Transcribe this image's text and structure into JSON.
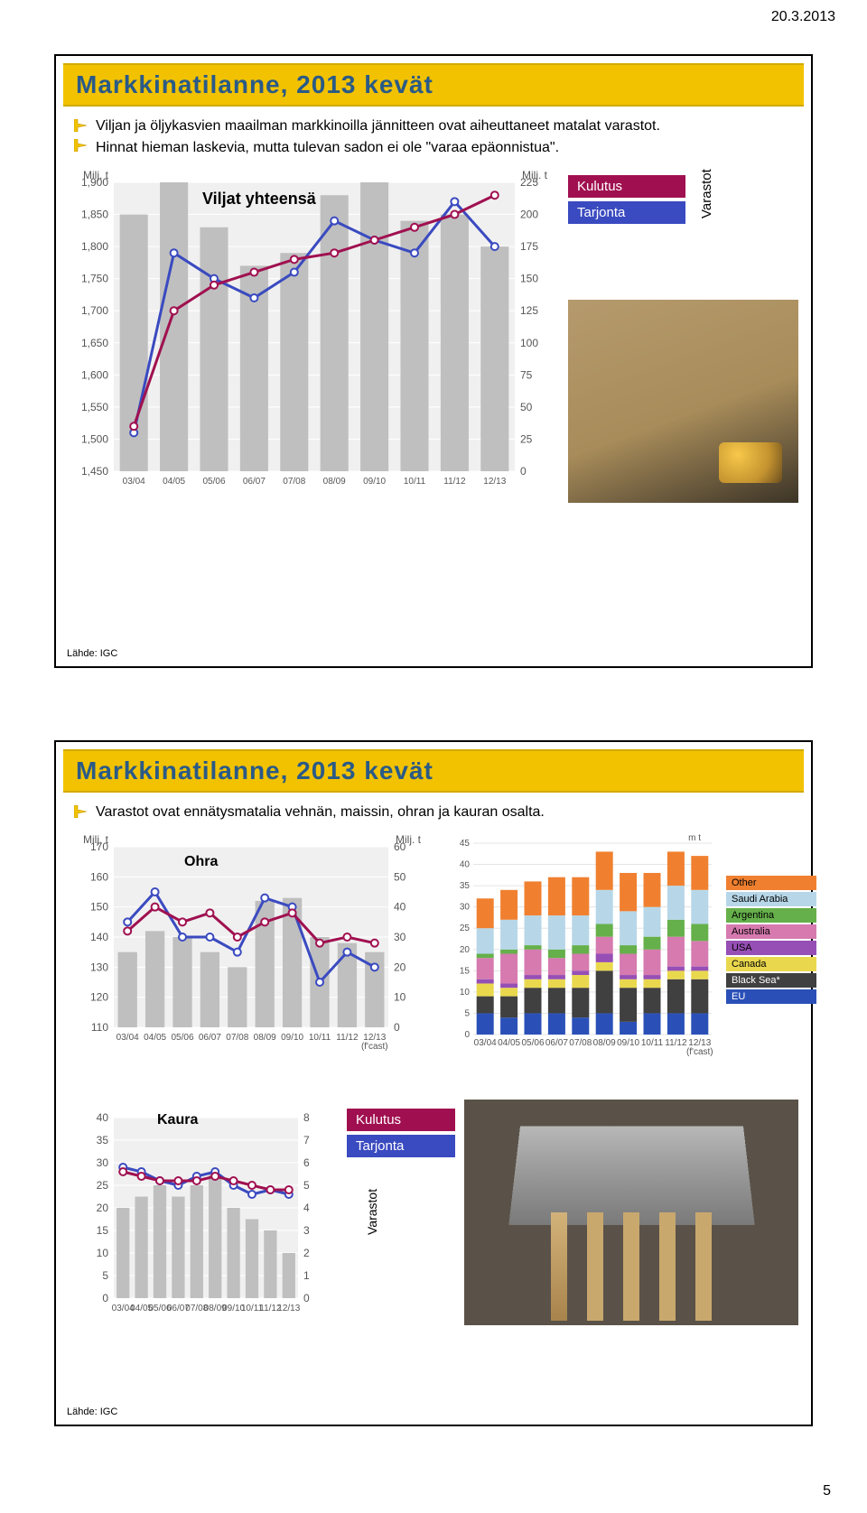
{
  "page": {
    "date": "20.3.2013",
    "number": "5"
  },
  "slide1": {
    "title": "Markkinatilanne, 2013 kevät",
    "bullets": [
      "Viljan ja öljykasvien maailman markkinoilla jännitteen ovat aiheuttaneet matalat varastot.",
      "Hinnat hieman laskevia, mutta tulevan sadon ei ole \"varaa epäonnistua\"."
    ],
    "chart": {
      "type": "bar+line",
      "title": "Viljat yhteensä",
      "left_label": "Milj. t",
      "right_label": "Milj. t",
      "categories": [
        "03/04",
        "04/05",
        "05/06",
        "06/07",
        "07/08",
        "08/09",
        "09/10",
        "10/11",
        "11/12",
        "12/13"
      ],
      "left_ymin": 1450,
      "left_ymax": 1900,
      "left_ystep": 50,
      "right_ymin": 0,
      "right_ymax": 225,
      "right_ystep": 25,
      "stocks_bars": [
        200,
        225,
        190,
        160,
        170,
        215,
        225,
        195,
        200,
        175
      ],
      "supply_line": [
        1510,
        1790,
        1750,
        1720,
        1760,
        1840,
        1810,
        1790,
        1870,
        1800
      ],
      "consumption_line": [
        1520,
        1700,
        1740,
        1760,
        1780,
        1790,
        1810,
        1830,
        1850,
        1880
      ],
      "bar_color": "#bfbfbf",
      "supply_color": "#3a4ac0",
      "consumption_color": "#a01050",
      "grid_color": "#ffffff",
      "bg_color": "#f0f0f0",
      "axis_color": "#555555",
      "font_pt": 12
    },
    "legend": {
      "kulutus": {
        "label": "Kulutus",
        "color": "#a01050"
      },
      "tarjonta": {
        "label": "Tarjonta",
        "color": "#3a4ac0"
      },
      "varastot": {
        "label": "Varastot"
      }
    },
    "source": "Lähde: IGC"
  },
  "slide2": {
    "title": "Markkinatilanne, 2013 kevät",
    "bullet": "Varastot ovat ennätysmatalia vehnän, maissin, ohran ja kauran osalta.",
    "ohra": {
      "type": "bar+line",
      "title": "Ohra",
      "left_label": "Milj. t",
      "right_label": "Milj. t",
      "categories": [
        "03/04",
        "04/05",
        "05/06",
        "06/07",
        "07/08",
        "08/09",
        "09/10",
        "10/11",
        "11/12",
        "12/13\n(f'cast)"
      ],
      "left_ymin": 110,
      "left_ymax": 170,
      "left_ystep": 10,
      "right_ymin": 0,
      "right_ymax": 60,
      "right_ystep": 10,
      "stocks_bars": [
        25,
        32,
        30,
        25,
        20,
        42,
        43,
        30,
        28,
        25
      ],
      "supply_line": [
        145,
        155,
        140,
        140,
        135,
        153,
        150,
        125,
        135,
        130
      ],
      "consumption_line": [
        142,
        150,
        145,
        148,
        140,
        145,
        148,
        138,
        140,
        138
      ],
      "bar_color": "#bfbfbf",
      "supply_color": "#3a4ac0",
      "consumption_color": "#a01050",
      "bg_color": "#f0f0f0"
    },
    "exporters": {
      "type": "stacked-bar",
      "ylabel": "m t",
      "ymin": 0,
      "ymax": 45,
      "ystep": 5,
      "categories": [
        "03/04",
        "04/05",
        "05/06",
        "06/07",
        "07/08",
        "08/09",
        "09/10",
        "10/11",
        "11/12",
        "12/13\n(f'cast)"
      ],
      "series": [
        {
          "name": "EU",
          "color": "#2a50b8",
          "values": [
            5,
            4,
            5,
            5,
            4,
            5,
            3,
            5,
            5,
            5
          ]
        },
        {
          "name": "Black Sea*",
          "color": "#404040",
          "values": [
            4,
            5,
            6,
            6,
            7,
            10,
            8,
            6,
            8,
            8
          ]
        },
        {
          "name": "Canada",
          "color": "#e9d84e",
          "values": [
            3,
            2,
            2,
            2,
            3,
            2,
            2,
            2,
            2,
            2
          ]
        },
        {
          "name": "USA",
          "color": "#964fb5",
          "values": [
            1,
            1,
            1,
            1,
            1,
            2,
            1,
            1,
            1,
            1
          ]
        },
        {
          "name": "Australia",
          "color": "#d67ab0",
          "values": [
            5,
            7,
            6,
            4,
            4,
            4,
            5,
            6,
            7,
            6
          ]
        },
        {
          "name": "Argentina",
          "color": "#65b04a",
          "values": [
            1,
            1,
            1,
            2,
            2,
            3,
            2,
            3,
            4,
            4
          ]
        },
        {
          "name": "Saudi Arabia",
          "color": "#b7d7e8",
          "values": [
            6,
            7,
            7,
            8,
            7,
            8,
            8,
            7,
            8,
            8
          ]
        },
        {
          "name": "Other",
          "color": "#f08030",
          "values": [
            7,
            7,
            8,
            9,
            9,
            9,
            9,
            8,
            8,
            8
          ]
        }
      ]
    },
    "kaura": {
      "type": "bar+line",
      "title": "Kaura",
      "categories": [
        "03/04",
        "04/05",
        "05/06",
        "06/07",
        "07/08",
        "08/09",
        "09/10",
        "10/11",
        "11/12",
        "12/13"
      ],
      "left_ymin": 0,
      "left_ymax": 40,
      "left_ystep": 5,
      "right_ymin": 0,
      "right_ymax": 8,
      "right_ystep": 1,
      "stocks_bars": [
        4,
        4.5,
        5,
        4.5,
        5,
        5.5,
        4,
        3.5,
        3,
        2
      ],
      "supply_line": [
        29,
        28,
        26,
        25,
        27,
        28,
        25,
        23,
        24,
        23
      ],
      "consumption_line": [
        28,
        27,
        26,
        26,
        26,
        27,
        26,
        25,
        24,
        24
      ],
      "bar_color": "#bfbfbf",
      "supply_color": "#3a4ac0",
      "consumption_color": "#a01050",
      "bg_color": "#f0f0f0"
    },
    "legend": {
      "kulutus": {
        "label": "Kulutus",
        "color": "#a01050"
      },
      "tarjonta": {
        "label": "Tarjonta",
        "color": "#3a4ac0"
      },
      "varastot": {
        "label": "Varastot"
      }
    },
    "source": "Lähde: IGC"
  }
}
